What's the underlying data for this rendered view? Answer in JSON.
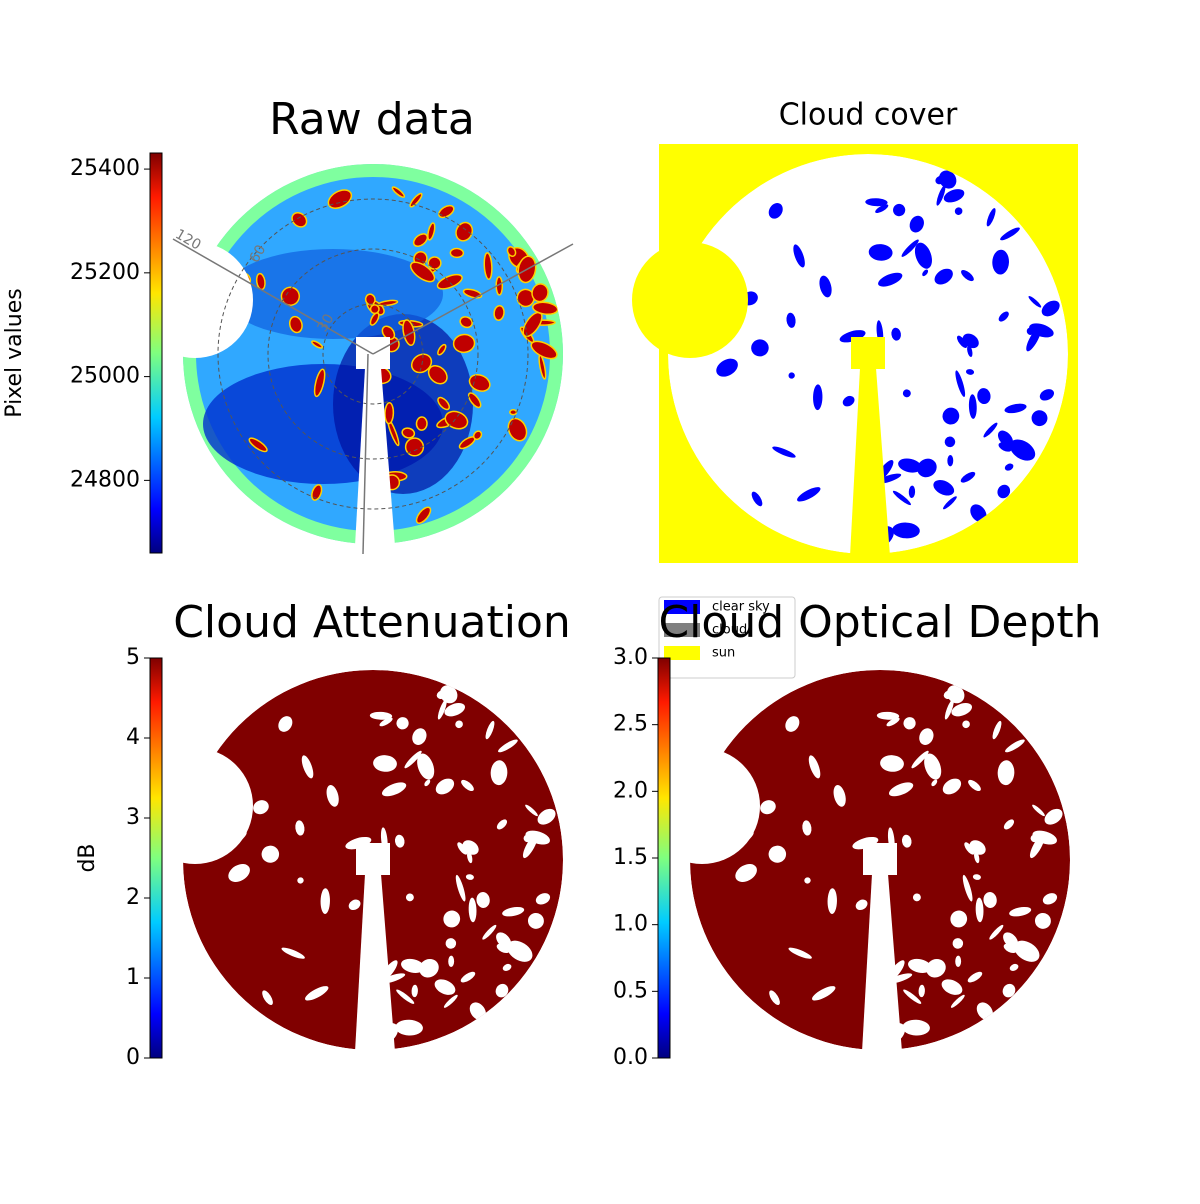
{
  "chart_data": [
    {
      "type": "image",
      "title": "Raw data",
      "colorbar": {
        "label": "Pixel values",
        "ylim": [
          24660,
          25431
        ],
        "yticks": [
          24800,
          25000,
          25200,
          25400
        ]
      },
      "polar_labels": [
        "120",
        "60",
        "30"
      ]
    },
    {
      "type": "image",
      "title": "Cloud cover",
      "legend": {
        "entries": [
          {
            "name": "clear sky",
            "color": "#0000ff"
          },
          {
            "name": "cloud",
            "color": "#808080"
          },
          {
            "name": "sun",
            "color": "#ffff00"
          }
        ]
      }
    },
    {
      "type": "image",
      "title": "Cloud Attenuation",
      "colorbar": {
        "label": "dB",
        "ylim": [
          0,
          5
        ],
        "yticks": [
          0,
          1,
          2,
          3,
          4,
          5
        ]
      }
    },
    {
      "type": "image",
      "title": "Cloud Optical Depth",
      "colorbar": {
        "ylim": [
          0,
          3
        ],
        "yticks": [
          {
            "value": 0,
            "label": "0.0"
          },
          {
            "value": 0.5,
            "label": "0.5"
          },
          {
            "value": 1,
            "label": "1.0"
          },
          {
            "value": 1.5,
            "label": "1.5"
          },
          {
            "value": 2,
            "label": "2.0"
          },
          {
            "value": 2.5,
            "label": "2.5"
          },
          {
            "value": 3,
            "label": "3.0"
          }
        ]
      }
    }
  ]
}
